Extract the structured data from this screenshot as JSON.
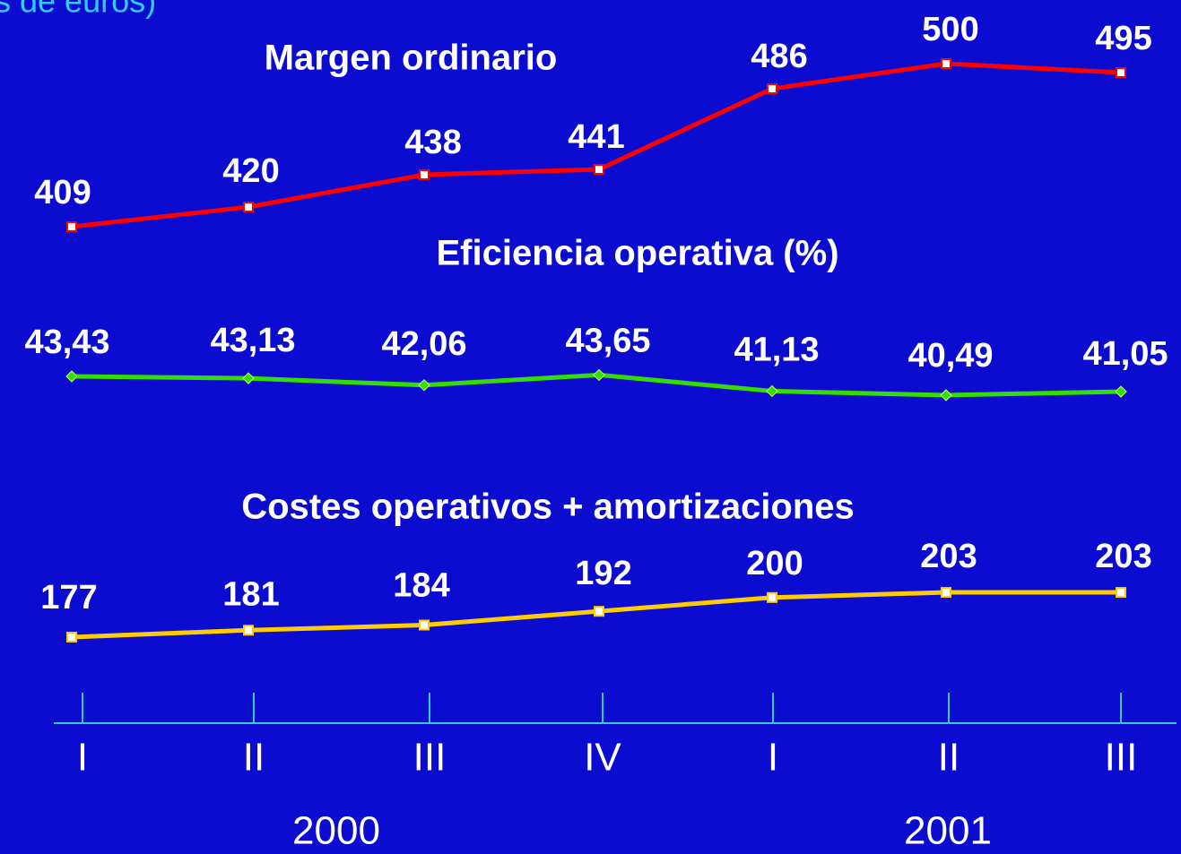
{
  "chart_data": {
    "type": "line",
    "caption": "s de euros)",
    "categories": [
      "I",
      "II",
      "III",
      "IV",
      "I",
      "II",
      "III"
    ],
    "groups": [
      "2000",
      "2001"
    ],
    "series": [
      {
        "name": "Margen ordinario",
        "color": "#ff0000",
        "marker": "square",
        "values": [
          409,
          420,
          438,
          441,
          486,
          500,
          495
        ]
      },
      {
        "name": "Eficiencia operativa (%)",
        "color": "#33dd00",
        "marker": "diamond",
        "values": [
          43.43,
          43.13,
          42.06,
          43.65,
          41.13,
          40.49,
          41.05
        ],
        "value_labels": [
          "43,43",
          "43,13",
          "42,06",
          "43,65",
          "41,13",
          "40,49",
          "41,05"
        ]
      },
      {
        "name": "Costes operativos + amortizaciones",
        "color": "#ffcc00",
        "marker": "square",
        "values": [
          177,
          181,
          184,
          192,
          200,
          203,
          203
        ]
      }
    ]
  }
}
